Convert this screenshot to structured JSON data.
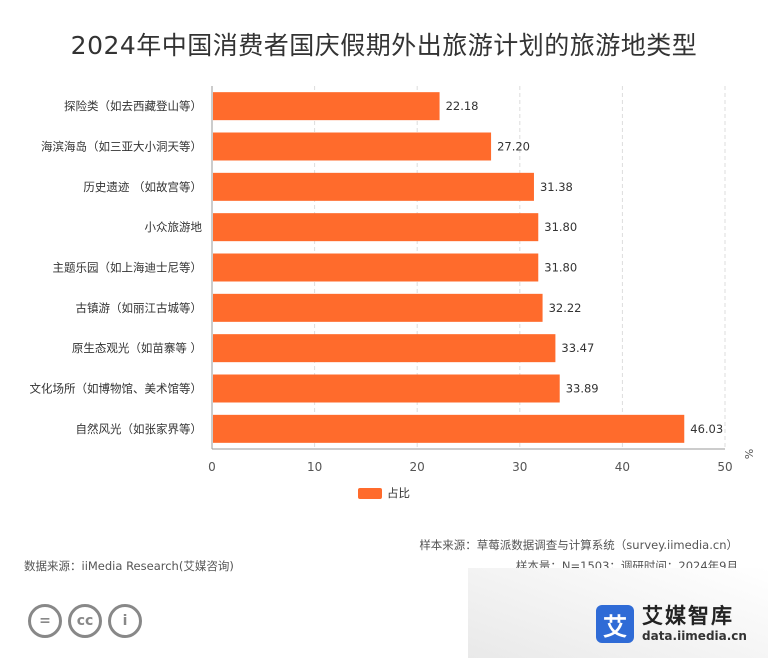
{
  "chart_data": {
    "type": "bar",
    "orientation": "horizontal",
    "title": "2024年中国消费者国庆假期外出旅游计划的旅游地类型",
    "categories": [
      "探险类（如去西藏登山等）",
      "海滨海岛（如三亚大小洞天等）",
      "历史遗迹 （如故宫等）",
      "小众旅游地",
      "主题乐园（如上海迪士尼等）",
      "古镇游（如丽江古城等）",
      "原生态观光（如苗寨等 ）",
      "文化场所（如博物馆、美术馆等）",
      "自然风光（如张家界等）"
    ],
    "series": [
      {
        "name": "占比",
        "values": [
          22.18,
          27.2,
          31.38,
          31.8,
          31.8,
          32.22,
          33.47,
          33.89,
          46.03
        ],
        "labels": [
          "22.18",
          "27.20",
          "31.38",
          "31.80",
          "31.80",
          "32.22",
          "33.47",
          "33.89",
          "46.03"
        ],
        "color": "#FF6B2C"
      }
    ],
    "xlim": [
      0,
      50
    ],
    "xticks": [
      "0",
      "10",
      "20",
      "30",
      "40",
      "50"
    ],
    "unit": "%",
    "grid": "vertical dashed",
    "legend": "bottom-center"
  },
  "footer": {
    "sample_source": "样本来源：草莓派数据调查与计算系统（survey.iimedia.cn）",
    "data_source": "数据来源：iiMedia Research(艾媒咨询)",
    "sample_size": "样本量：N=1503；调研时间：2024年9月"
  },
  "license": {
    "icon_1": "=",
    "icon_2": "cc",
    "icon_3": "i"
  },
  "brand": {
    "logo_char": "艾",
    "name": "艾媒智库",
    "url": "data.iimedia.cn"
  },
  "colors": {
    "bar": "#FF6B2C",
    "brand": "#2F6BD6"
  }
}
